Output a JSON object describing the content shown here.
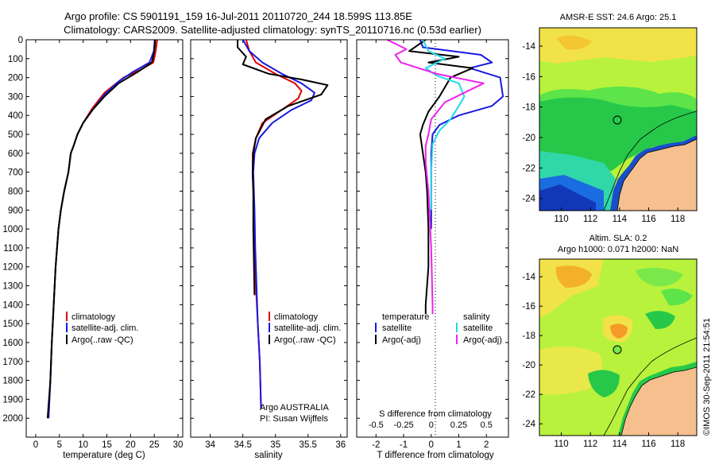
{
  "title": {
    "line1": "Argo profile: CS 5901191_159 16-Jul-2011 20110720_244 18.599S 113.85E",
    "line2": "Climatology: CARS2009. Satellite-adjusted climatology: synTS_20110716.nc (0.53d earlier)"
  },
  "colors": {
    "climatology": "#e00000",
    "satellite": "#1a1adf",
    "argo": "#000000",
    "sal_satellite": "#22d8e8",
    "sal_argo": "#ee22ee",
    "land": "#f5c08e"
  },
  "chart_data": [
    {
      "type": "line",
      "name": "temperature",
      "xlabel": "temperature (deg C)",
      "ylabel": "",
      "xlim": [
        -2,
        31
      ],
      "ylim": [
        0,
        2100
      ],
      "y_reversed": true,
      "xticks": [
        0,
        5,
        10,
        15,
        20,
        25,
        30
      ],
      "yticks": [
        0,
        100,
        200,
        300,
        400,
        500,
        600,
        700,
        800,
        900,
        1000,
        1100,
        1200,
        1300,
        1400,
        1500,
        1600,
        1700,
        1800,
        1900,
        2000
      ],
      "legend": [
        "climatology",
        "satellite-adj. clim.",
        "Argo(..raw -QC)"
      ],
      "series": [
        {
          "name": "climatology",
          "color": "climatology",
          "x": [
            25.6,
            25.3,
            24.8,
            22,
            18.5,
            14.5,
            12,
            10,
            8.8,
            8,
            7.4,
            6.9,
            6,
            5.3,
            4.8,
            4.2,
            3.8,
            3.4,
            3.1,
            2.7
          ],
          "y": [
            0,
            60,
            120,
            160,
            200,
            280,
            360,
            440,
            500,
            560,
            600,
            700,
            800,
            900,
            1000,
            1200,
            1400,
            1600,
            1800,
            2000
          ]
        },
        {
          "name": "satellite-adj. clim.",
          "color": "satellite",
          "x": [
            25.1,
            24.9,
            24,
            20.5,
            17.5,
            14.5,
            12,
            10,
            8.8,
            8,
            7.4,
            6.9,
            6,
            5.3,
            4.8,
            4.2,
            3.8,
            3.4,
            3.1,
            2.7
          ],
          "y": [
            0,
            60,
            120,
            170,
            220,
            290,
            370,
            440,
            500,
            560,
            600,
            700,
            800,
            900,
            1000,
            1200,
            1400,
            1600,
            1800,
            2000
          ]
        },
        {
          "name": "Argo(..raw -QC)",
          "color": "argo",
          "x": [
            25.2,
            25.0,
            24.5,
            21.5,
            17.5,
            14.5,
            12,
            10,
            8.8,
            8,
            7.4,
            6.9,
            6,
            5.3,
            4.8,
            4.2,
            3.8,
            3.4,
            3.1,
            2.5
          ],
          "y": [
            0,
            60,
            120,
            170,
            230,
            300,
            370,
            440,
            500,
            560,
            600,
            700,
            800,
            900,
            1000,
            1200,
            1400,
            1600,
            1800,
            2000
          ]
        }
      ]
    },
    {
      "type": "line",
      "name": "salinity",
      "xlabel": "salinity",
      "ylabel": "",
      "xlim": [
        33.7,
        36.1
      ],
      "ylim": [
        0,
        2100
      ],
      "y_reversed": true,
      "xticks": [
        34,
        34.5,
        35,
        35.5,
        36
      ],
      "legend": [
        "climatology",
        "satellite-adj. clim.",
        "Argo(..raw -QC)"
      ],
      "annotation": [
        "Argo AUSTRALIA",
        "PI: Susan Wijffels"
      ],
      "series": [
        {
          "name": "climatology",
          "color": "climatology",
          "x": [
            34.55,
            34.6,
            34.7,
            35.0,
            35.3,
            35.4,
            35.35,
            35.1,
            34.8,
            34.7,
            34.65,
            34.65,
            34.66,
            34.67,
            34.68,
            34.7,
            34.73,
            34.76,
            34.78
          ],
          "y": [
            0,
            60,
            120,
            180,
            230,
            270,
            310,
            370,
            440,
            520,
            600,
            700,
            800,
            900,
            1100,
            1300,
            1500,
            1700,
            1950
          ]
        },
        {
          "name": "satellite-adj. clim.",
          "color": "satellite",
          "x": [
            34.5,
            34.6,
            34.8,
            35.1,
            35.4,
            35.6,
            35.55,
            35.25,
            34.95,
            34.75,
            34.68,
            34.66,
            34.67,
            34.68,
            34.69,
            34.71,
            34.73,
            34.76,
            34.78
          ],
          "y": [
            0,
            60,
            120,
            180,
            230,
            280,
            320,
            370,
            440,
            520,
            600,
            700,
            800,
            900,
            1100,
            1300,
            1500,
            1700,
            1950
          ]
        },
        {
          "name": "Argo(..raw -QC)",
          "color": "argo",
          "x": [
            34.42,
            34.42,
            34.55,
            34.5,
            34.9,
            35.4,
            35.8,
            35.7,
            35.2,
            34.85,
            34.7,
            34.66,
            34.65,
            34.66,
            34.66,
            34.68
          ],
          "y": [
            0,
            40,
            90,
            130,
            180,
            210,
            240,
            290,
            350,
            420,
            520,
            600,
            700,
            800,
            1000,
            1350
          ]
        }
      ]
    },
    {
      "type": "line",
      "name": "difference",
      "xlabel_top": "S difference from climatology",
      "xlabel": "T difference from climatology",
      "xlim": [
        -2.7,
        2.8
      ],
      "ylim": [
        0,
        2100
      ],
      "y_reversed": true,
      "xticks": [
        -2,
        -1,
        0,
        1,
        2
      ],
      "xticks_top": [
        "-0.5",
        "-0.25",
        "0",
        "0.25",
        "0.5"
      ],
      "xticks_top_pos": [
        -2,
        -1,
        0,
        1,
        2
      ],
      "legend_temperature": {
        "header": "temperature",
        "items": [
          "satellite",
          "Argo(-adj)"
        ]
      },
      "legend_salinity": {
        "header": "salinity",
        "items": [
          "satellite",
          "Argo(-adj)"
        ]
      },
      "series": [
        {
          "name": "temperature satellite",
          "color": "satellite",
          "x": [
            -0.4,
            -0.3,
            1.8,
            2.2,
            1.4,
            2.5,
            2.6,
            2.2,
            1.0,
            0.3,
            0.05,
            0.0,
            0.0,
            0.0
          ],
          "y": [
            0,
            40,
            80,
            120,
            150,
            200,
            300,
            350,
            400,
            450,
            500,
            600,
            800,
            1000
          ]
        },
        {
          "name": "temperature Argo(-adj)",
          "color": "argo",
          "x": [
            -0.2,
            -0.8,
            1.0,
            -0.1,
            1.5,
            0.7,
            0.3,
            -0.1,
            -0.3,
            -0.4,
            -0.3,
            -0.2,
            -0.15,
            -0.1,
            -0.1,
            -0.2,
            -0.2
          ],
          "y": [
            0,
            60,
            90,
            120,
            150,
            200,
            300,
            380,
            450,
            500,
            600,
            700,
            800,
            1000,
            1200,
            1400,
            1450
          ]
        },
        {
          "name": "salinity satellite",
          "color": "sal_satellite",
          "x": [
            -0.3,
            -0.1,
            0.5,
            -0.2,
            0.2,
            1.0,
            1.2,
            1.0,
            0.7,
            0.3,
            0.05,
            0.0,
            0.0
          ],
          "y": [
            0,
            60,
            100,
            150,
            190,
            230,
            300,
            350,
            420,
            480,
            550,
            700,
            900
          ]
        },
        {
          "name": "salinity Argo(-adj)",
          "color": "sal_argo",
          "x": [
            -1.6,
            -0.9,
            -1.3,
            -1.1,
            0.2,
            1.9,
            1.2,
            0.5,
            0.0,
            -0.1,
            -0.2,
            -0.2,
            -0.1,
            0.0,
            0.05,
            0.05
          ],
          "y": [
            0,
            50,
            80,
            120,
            180,
            230,
            280,
            330,
            420,
            500,
            560,
            650,
            800,
            1100,
            1400,
            1450
          ]
        }
      ]
    },
    {
      "type": "heatmap",
      "name": "sst-map",
      "title": "AMSR-E SST: 24.6  Argo: 25.1",
      "xlim": [
        108.5,
        119.3
      ],
      "ylim": [
        -24.8,
        -12.8
      ],
      "xticks": [
        110,
        112,
        114,
        116,
        118
      ],
      "yticks": [
        -14,
        -16,
        -18,
        -20,
        -22,
        -24
      ],
      "marker": {
        "lon": 113.85,
        "lat": -18.6
      }
    },
    {
      "type": "heatmap",
      "name": "sla-map",
      "title": "Altim. SLA: 0.2",
      "subtitle": "Argo h1000: 0.071 h2000: NaN",
      "xlim": [
        108.5,
        119.3
      ],
      "ylim": [
        -24.8,
        -12.8
      ],
      "xticks": [
        110,
        112,
        114,
        116,
        118
      ],
      "yticks": [
        -14,
        -16,
        -18,
        -20,
        -22,
        -24
      ],
      "marker": {
        "lon": 113.85,
        "lat": -18.6
      }
    }
  ],
  "stamp": "©IMOS 30-Sep-2011 21:54:51"
}
